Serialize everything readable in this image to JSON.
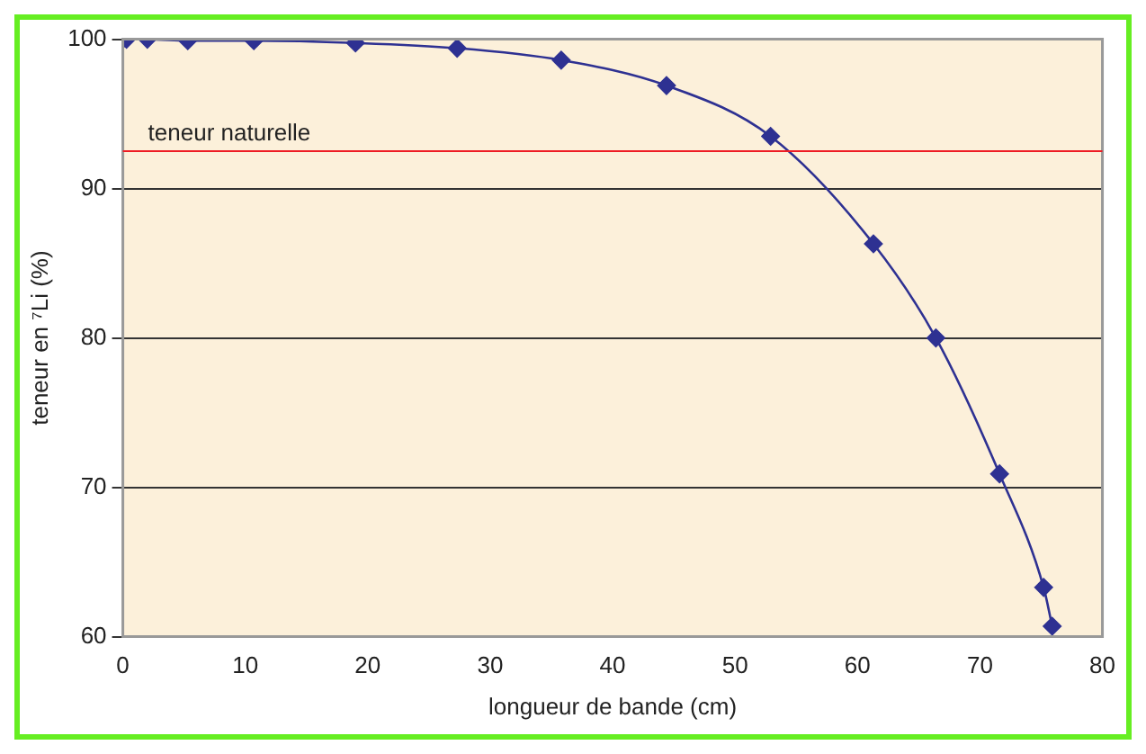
{
  "chart_data": {
    "type": "line",
    "xlabel": "longueur de bande (cm)",
    "ylabel": "teneur en ⁷Li (%)",
    "x": [
      0,
      0.3,
      2,
      5.3,
      10.7,
      19,
      27.3,
      35.8,
      44.4,
      52.9,
      61.3,
      66.4,
      71.6,
      75.2,
      75.9
    ],
    "series": [
      {
        "color": "#2e3192",
        "values": [
          100,
          100,
          100,
          99.9,
          99.9,
          99.75,
          99.4,
          98.6,
          96.9,
          93.5,
          86.3,
          80,
          70.9,
          63.3,
          60.7
        ]
      }
    ],
    "xlim": [
      0,
      80
    ],
    "xticks": [
      0,
      10,
      20,
      30,
      40,
      50,
      60,
      70,
      80
    ],
    "ylim": [
      60,
      100
    ],
    "yticks": [
      60,
      70,
      80,
      90,
      100
    ],
    "ref_lines": [
      {
        "axis": "y",
        "value": 92.5,
        "label": "teneur naturelle",
        "color": "#ee1c24"
      }
    ],
    "grid": "y",
    "legend": false,
    "marker": "diamond",
    "line_style": "solid"
  }
}
